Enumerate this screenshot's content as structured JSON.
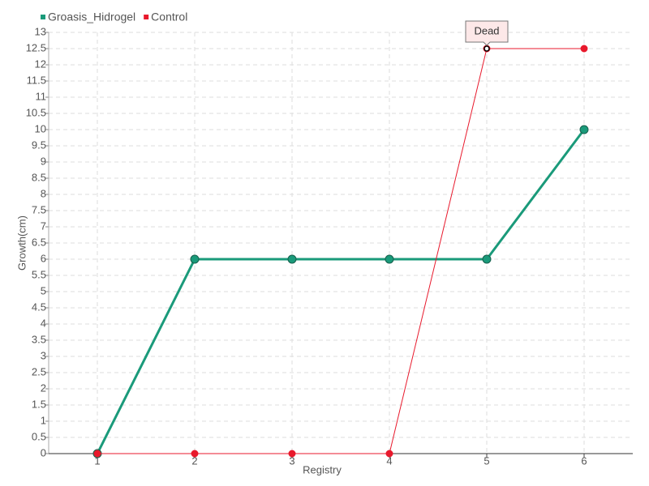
{
  "chart_data": {
    "type": "line",
    "x": [
      1,
      2,
      3,
      4,
      5,
      6
    ],
    "xlabel": "Registry",
    "ylabel": "Growth(cm)",
    "xlim": [
      0.5,
      6.5
    ],
    "xticks": [
      1,
      2,
      3,
      4,
      5,
      6
    ],
    "ylim": [
      0,
      13
    ],
    "yticks": [
      0,
      0.5,
      1,
      1.5,
      2,
      2.5,
      3,
      3.5,
      4,
      4.5,
      5,
      5.5,
      6,
      6.5,
      7,
      7.5,
      8,
      8.5,
      9,
      9.5,
      10,
      10.5,
      11,
      11.5,
      12,
      12.5,
      13
    ],
    "grid": true,
    "legend": "top-left",
    "series": [
      {
        "name": "Groasis_Hidrogel",
        "color": "#1a9a7a",
        "values": [
          0,
          6,
          6,
          6,
          6,
          10
        ]
      },
      {
        "name": "Control",
        "color": "#e8192c",
        "values": [
          0,
          0,
          0,
          0,
          12.5,
          12.5
        ]
      }
    ],
    "annotation": {
      "text": "Dead",
      "x": 5,
      "y": 12.5
    }
  }
}
